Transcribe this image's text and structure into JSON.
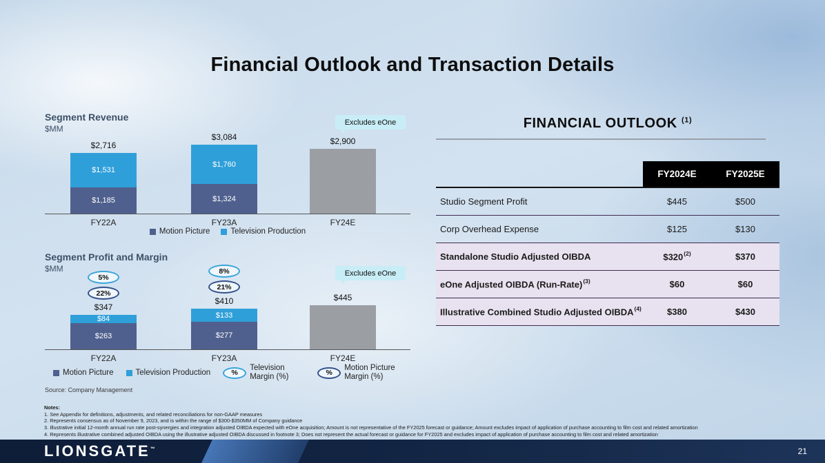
{
  "slide": {
    "title": "Financial Outlook and Transaction Details",
    "logo": "LIONSGATE",
    "trademark": "™",
    "page_number": "21",
    "source": "Source: Company Management"
  },
  "colors": {
    "Motion Picture": "#4f608e",
    "Television Production": "#2f9fd9",
    "Excludes eOne Total": "#9b9fa4",
    "accent_cyan": "#c8edf6",
    "table_highlight": "#e8e2f0",
    "header_black": "#000000"
  },
  "chart_data": [
    {
      "type": "bar",
      "stacked": true,
      "title": "Segment Revenue",
      "unit": "$MM",
      "categories": [
        "FY22A",
        "FY23A",
        "FY24E"
      ],
      "legend": [
        "Motion Picture",
        "Television Production"
      ],
      "callout": "Excludes eOne",
      "bars": [
        {
          "category": "FY22A",
          "total": 2716,
          "total_label": "$2,716",
          "segments": [
            {
              "series": "Motion Picture",
              "value": 1185,
              "label": "$1,185"
            },
            {
              "series": "Television Production",
              "value": 1531,
              "label": "$1,531"
            }
          ]
        },
        {
          "category": "FY23A",
          "total": 3084,
          "total_label": "$3,084",
          "segments": [
            {
              "series": "Motion Picture",
              "value": 1324,
              "label": "$1,324"
            },
            {
              "series": "Television Production",
              "value": 1760,
              "label": "$1,760"
            }
          ]
        },
        {
          "category": "FY24E",
          "total": 2900,
          "total_label": "$2,900",
          "segments": [
            {
              "series": "Excludes eOne Total",
              "value": 2900,
              "label": ""
            }
          ]
        }
      ]
    },
    {
      "type": "bar",
      "stacked": true,
      "title": "Segment Profit and Margin",
      "unit": "$MM",
      "categories": [
        "FY22A",
        "FY23A",
        "FY24E"
      ],
      "legend": [
        "Motion Picture",
        "Television Production"
      ],
      "margin_legend": [
        {
          "badge": "%",
          "series": "Television Production",
          "label": "Television Margin (%)"
        },
        {
          "badge": "%",
          "series": "Motion Picture",
          "label": "Motion Picture Margin (%)"
        }
      ],
      "callout": "Excludes eOne",
      "bars": [
        {
          "category": "FY22A",
          "total": 347,
          "total_label": "$347",
          "margins": [
            {
              "text": "5%",
              "series": "Television Production"
            },
            {
              "text": "22%",
              "series": "Motion Picture"
            }
          ],
          "segments": [
            {
              "series": "Motion Picture",
              "value": 263,
              "label": "$263"
            },
            {
              "series": "Television Production",
              "value": 84,
              "label": "$84"
            }
          ]
        },
        {
          "category": "FY23A",
          "total": 410,
          "total_label": "$410",
          "margins": [
            {
              "text": "8%",
              "series": "Television Production"
            },
            {
              "text": "21%",
              "series": "Motion Picture"
            }
          ],
          "segments": [
            {
              "series": "Motion Picture",
              "value": 277,
              "label": "$277"
            },
            {
              "series": "Television Production",
              "value": 133,
              "label": "$133"
            }
          ]
        },
        {
          "category": "FY24E",
          "total": 445,
          "total_label": "$445",
          "segments": [
            {
              "series": "Excludes eOne Total",
              "value": 445,
              "label": ""
            }
          ]
        }
      ]
    }
  ],
  "financial_outlook": {
    "title": "FINANCIAL OUTLOOK",
    "title_superscript": "(1)",
    "columns": [
      "FY2024E",
      "FY2025E"
    ],
    "rows": [
      {
        "label": "Studio Segment Profit",
        "values": [
          "$445",
          "$500"
        ],
        "highlight": false
      },
      {
        "label": "Corp Overhead Expense",
        "values": [
          "$125",
          "$130"
        ],
        "highlight": false
      },
      {
        "label": "Standalone Studio Adjusted OIBDA",
        "values": [
          "$320",
          "$370"
        ],
        "value_sups": [
          "(2)",
          ""
        ],
        "highlight": true
      },
      {
        "label": "eOne Adjusted OIBDA (Run-Rate)",
        "label_sup": "(3)",
        "values": [
          "$60",
          "$60"
        ],
        "highlight": true
      },
      {
        "label": "Illustrative Combined Studio Adjusted OIBDA",
        "label_sup": "(4)",
        "values": [
          "$380",
          "$430"
        ],
        "highlight": true
      }
    ]
  },
  "notes": {
    "heading": "Notes:",
    "items": [
      "1. See Appendix for definitions, adjustments, and related reconciliations for non-GAAP measures",
      "2. Represents consensus as of November 9, 2023, and is within the range of $300-$350MM of Company guidance",
      "3. Illustrative initial 12-month annual run rate post-synergies and integration adjusted OIBDA expected with eOne acquisition; Amount is not representative of the FY2025 forecast or guidance; Amount excludes impact of application of purchase accounting to film cost and related amortization",
      "4. Represents illustrative combined adjusted OIBDA using the illustrative adjusted OIBDA discussed in footnote 3; Does not represent the actual forecast or guidance for FY2025 and excludes impact of application of purchase accounting to film cost and related amortization"
    ]
  }
}
